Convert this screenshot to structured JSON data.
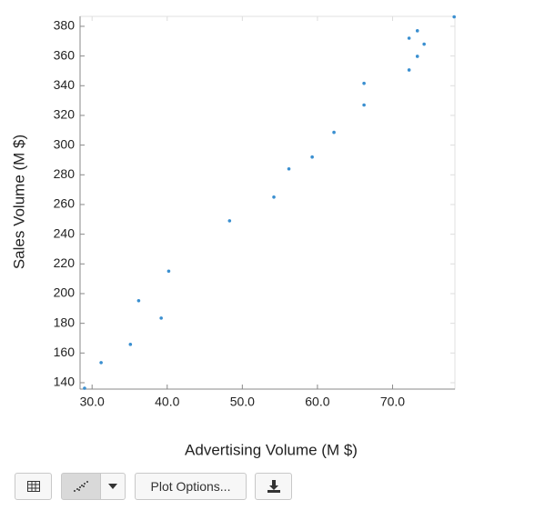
{
  "chart_data": {
    "type": "scatter",
    "x_label": "Advertising Volume (M $)",
    "y_label": "Sales Volume (M $)",
    "color": "#3a8fd0",
    "x": [
      29.0,
      31.2,
      35.1,
      36.2,
      39.2,
      40.2,
      48.3,
      54.2,
      56.2,
      59.3,
      62.2,
      66.2,
      66.2,
      72.2,
      73.3,
      72.2,
      73.3,
      74.2,
      78.2
    ],
    "values": [
      136.3,
      153.5,
      165.8,
      195.2,
      183.5,
      215.1,
      249,
      265,
      284,
      292,
      308.6,
      327,
      341.6,
      350.6,
      359.8,
      372,
      377,
      368,
      386.4
    ],
    "xlim": [
      28.4,
      78.3
    ],
    "ylim": [
      135.7,
      386.7
    ],
    "xticks": [
      {
        "value": 30,
        "label": "30.0"
      },
      {
        "value": 40,
        "label": "40.0"
      },
      {
        "value": 50,
        "label": "50.0"
      },
      {
        "value": 60,
        "label": "60.0"
      },
      {
        "value": 70,
        "label": "70.0"
      }
    ],
    "yticks": [
      140,
      160,
      180,
      200,
      220,
      240,
      260,
      280,
      300,
      320,
      340,
      360,
      380
    ]
  },
  "toolbar": {
    "plot_options": "Plot Options..."
  }
}
